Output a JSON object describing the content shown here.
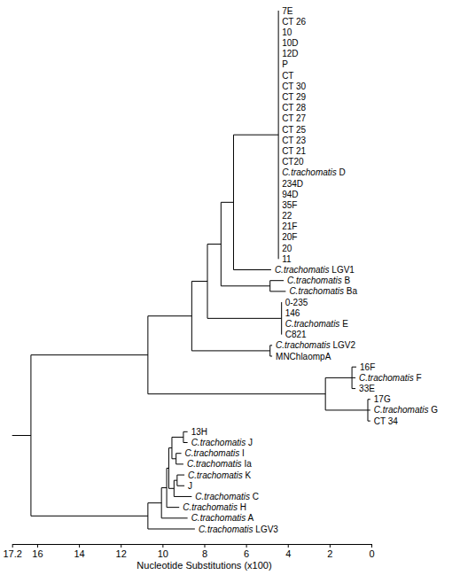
{
  "chart_data": {
    "type": "dendrogram",
    "x_label": "Nucleotide Substitutions (x100)",
    "xlim": [
      17.2,
      0
    ],
    "xticks": [
      17.2,
      16,
      14,
      12,
      10,
      8,
      6,
      4,
      2,
      0
    ],
    "tree": {
      "x": 16.3,
      "children": [
        {
          "x": 10.7,
          "children": [
            {
              "x": 8.6,
              "children": [
                {
                  "x": 7.85,
                  "children": [
                    {
                      "x": 7.2,
                      "children": [
                        {
                          "x": 6.6,
                          "children": [
                            {
                              "x": 4.45,
                              "children": [
                                {
                                  "label": "7E",
                                  "x": 4.45
                                },
                                {
                                  "label": "CT 26",
                                  "x": 4.45
                                },
                                {
                                  "label": "10",
                                  "x": 4.45
                                },
                                {
                                  "label": "10D",
                                  "x": 4.45
                                },
                                {
                                  "label": "12D",
                                  "x": 4.45
                                },
                                {
                                  "label": "P",
                                  "x": 4.45
                                },
                                {
                                  "label": "CT",
                                  "x": 4.45
                                },
                                {
                                  "label": "CT 30",
                                  "x": 4.45
                                },
                                {
                                  "label": "CT 29",
                                  "x": 4.45
                                },
                                {
                                  "label": "CT 28",
                                  "x": 4.45
                                },
                                {
                                  "label": "CT 27",
                                  "x": 4.45
                                },
                                {
                                  "label": "CT 25",
                                  "x": 4.45
                                },
                                {
                                  "label": "CT 23",
                                  "x": 4.45
                                },
                                {
                                  "label": "CT 21",
                                  "x": 4.45
                                },
                                {
                                  "label": "CT20",
                                  "x": 4.45
                                },
                                {
                                  "label": "C.trachomatis D",
                                  "x": 4.45
                                },
                                {
                                  "label": "234D",
                                  "x": 4.45
                                },
                                {
                                  "label": "94D",
                                  "x": 4.45
                                },
                                {
                                  "label": "35F",
                                  "x": 4.45
                                },
                                {
                                  "label": "22",
                                  "x": 4.45
                                },
                                {
                                  "label": "21F",
                                  "x": 4.45
                                },
                                {
                                  "label": "20F",
                                  "x": 4.45
                                },
                                {
                                  "label": "20",
                                  "x": 4.45
                                },
                                {
                                  "label": "11",
                                  "x": 4.45
                                }
                              ]
                            },
                            {
                              "label": "C.trachomatis LGV1",
                              "x": 4.8
                            }
                          ]
                        },
                        {
                          "x": 4.85,
                          "children": [
                            {
                              "label": "C.trachomatis B",
                              "x": 4.2
                            },
                            {
                              "label": "C.trachomatis Ba",
                              "x": 4.1
                            }
                          ]
                        }
                      ]
                    },
                    {
                      "x": 4.3,
                      "children": [
                        {
                          "label": "0-235",
                          "x": 4.3
                        },
                        {
                          "label": "146",
                          "x": 4.3
                        },
                        {
                          "label": "C.trachomatis E",
                          "x": 4.3
                        },
                        {
                          "label": "C821",
                          "x": 4.3
                        }
                      ]
                    }
                  ]
                },
                {
                  "x": 4.85,
                  "children": [
                    {
                      "label": "C.trachomatis LGV2",
                      "x": 4.75
                    },
                    {
                      "label": "MNChlaompA",
                      "x": 4.75
                    }
                  ]
                }
              ]
            },
            {
              "x": 2.2,
              "children": [
                {
                  "x": 0.93,
                  "children": [
                    {
                      "label": "16F",
                      "x": 0.72
                    },
                    {
                      "label": "C.trachomatis F",
                      "x": 0.76
                    },
                    {
                      "label": "33E",
                      "x": 0.76
                    }
                  ]
                },
                {
                  "x": 0.17,
                  "children": [
                    {
                      "label": "17G",
                      "x": 0.05
                    },
                    {
                      "label": "C.trachomatis G",
                      "x": 0.05
                    },
                    {
                      "label": "CT 34",
                      "x": 0.05
                    }
                  ]
                }
              ]
            }
          ]
        },
        {
          "x": 10.7,
          "children": [
            {
              "x": 10.05,
              "children": [
                {
                  "x": 9.8,
                  "children": [
                    {
                      "x": 9.7,
                      "children": [
                        {
                          "x": 9.55,
                          "children": [
                            {
                              "x": 9.0,
                              "children": [
                                {
                                  "label": "13H",
                                  "x": 8.8
                                },
                                {
                                  "label": "C.trachomatis J",
                                  "x": 8.8
                                }
                              ]
                            },
                            {
                              "x": 9.35,
                              "children": [
                                {
                                  "label": "C.trachomatis I",
                                  "x": 9.1
                                },
                                {
                                  "label": "C.trachomatis Ia",
                                  "x": 9.0
                                }
                              ]
                            }
                          ]
                        },
                        {
                          "x": 9.45,
                          "children": [
                            {
                              "x": 9.3,
                              "children": [
                                {
                                  "label": "C.trachomatis K",
                                  "x": 8.95
                                },
                                {
                                  "label": "J",
                                  "x": 8.95
                                }
                              ]
                            },
                            {
                              "label": "C.trachomatis C",
                              "x": 8.6
                            }
                          ]
                        }
                      ]
                    },
                    {
                      "label": "C.trachomatis H",
                      "x": 9.2
                    }
                  ]
                },
                {
                  "label": "C.trachomatis A",
                  "x": 8.8
                }
              ]
            },
            {
              "label": "C.trachomatis LGV3",
              "x": 8.45
            }
          ]
        }
      ]
    }
  }
}
